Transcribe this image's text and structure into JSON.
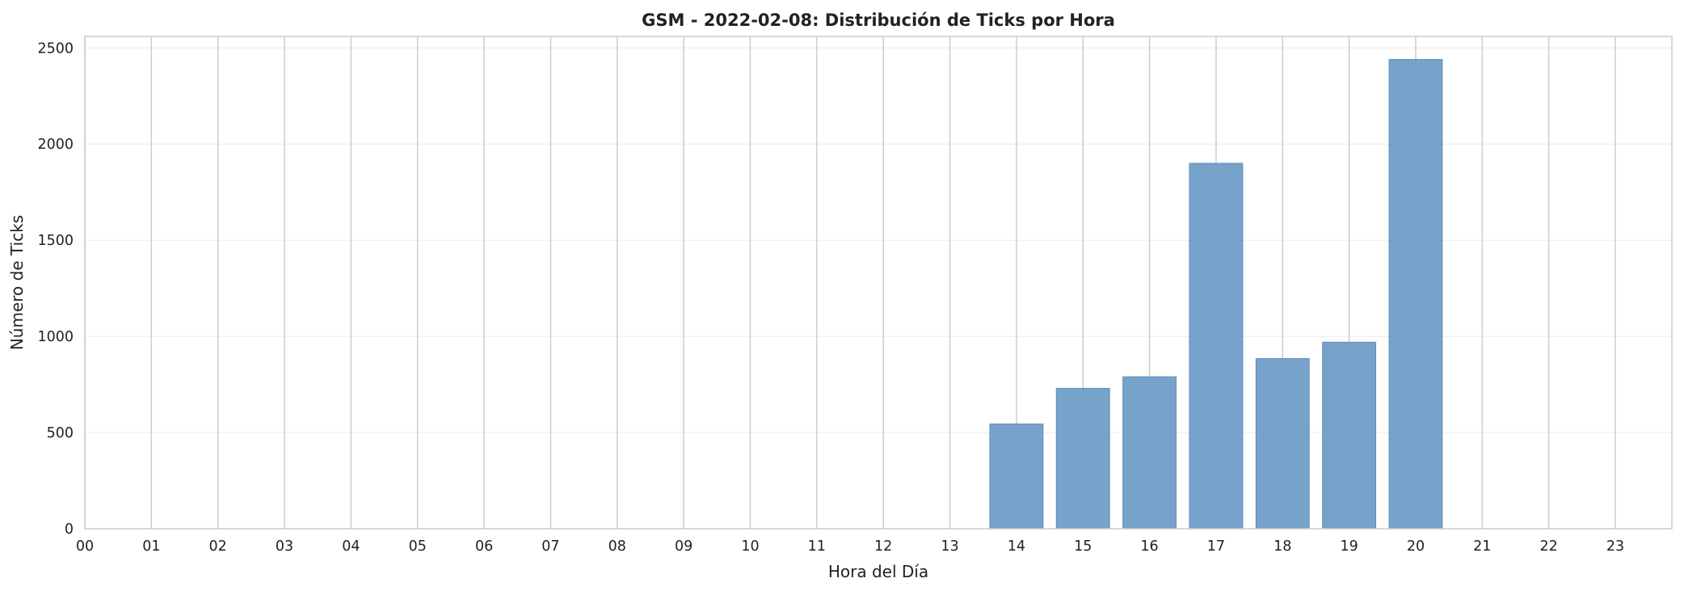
{
  "chart_data": {
    "type": "bar",
    "title": "GSM - 2022-02-08: Distribución de Ticks por Hora",
    "xlabel": "Hora del Día",
    "ylabel": "Número de Ticks",
    "categories": [
      "00",
      "01",
      "02",
      "03",
      "04",
      "05",
      "06",
      "07",
      "08",
      "09",
      "10",
      "11",
      "12",
      "13",
      "14",
      "15",
      "16",
      "17",
      "18",
      "19",
      "20",
      "21",
      "22",
      "23"
    ],
    "values": [
      0,
      0,
      0,
      0,
      0,
      0,
      0,
      0,
      0,
      0,
      0,
      0,
      0,
      0,
      545,
      730,
      790,
      1900,
      885,
      970,
      2440,
      0,
      0,
      0
    ],
    "ylim": [
      0,
      2560
    ],
    "yticks": [
      0,
      500,
      1000,
      1500,
      2000,
      2500
    ],
    "xlim": [
      0,
      23.85
    ],
    "grid": true,
    "legend": "none",
    "colors": {
      "bar": "#6b9bc7",
      "bar_edge": "#5f8db8",
      "grid_minor": "#eeeeee",
      "grid_major": "#cccccc",
      "spine": "#cccccc",
      "background": "#ffffff"
    }
  }
}
